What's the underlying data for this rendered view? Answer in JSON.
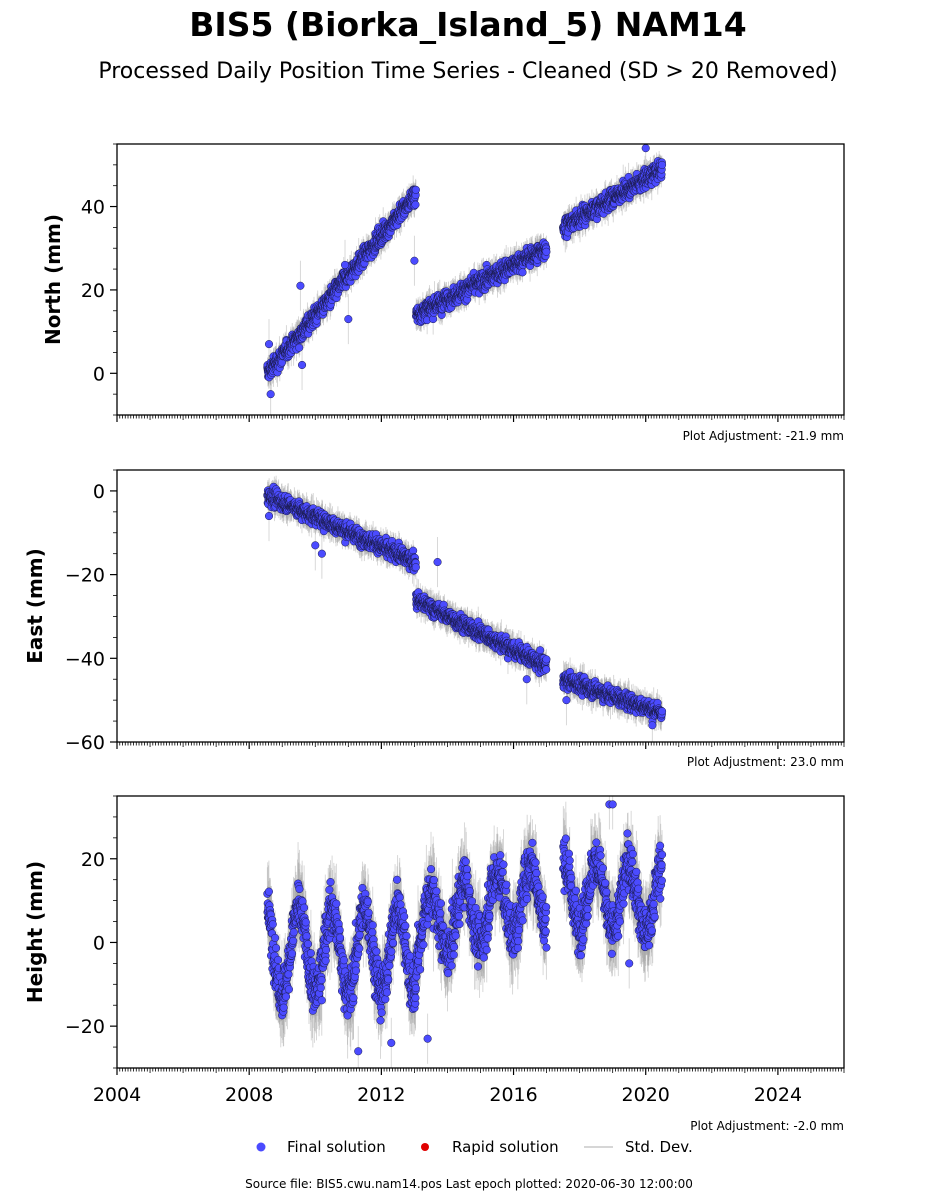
{
  "title": "BIS5 (Biorka_Island_5) NAM14",
  "subtitle": "Processed Daily Position Time Series - Cleaned (SD > 20 Removed)",
  "source": "Source file: BIS5.cwu.nam14.pos  Last epoch plotted: 2020-06-30 12:00:00",
  "legend": [
    {
      "label": "Final solution",
      "color": "#4B4BFF",
      "kind": "marker"
    },
    {
      "label": "Rapid solution",
      "color": "#E00000",
      "kind": "marker"
    },
    {
      "label": "Std. Dev.",
      "color": "#C8C8C8",
      "kind": "line"
    }
  ],
  "colors": {
    "final": "#4B4BFF",
    "edge": "#1a1a4a",
    "std": "#A0A0A0"
  },
  "x_ticks": [
    "2004",
    "2008",
    "2012",
    "2016",
    "2020",
    "2024"
  ],
  "chart_data": [
    {
      "type": "scatter",
      "ylabel": "North (mm)",
      "adjustment": "Plot Adjustment: -21.9 mm",
      "xlim": [
        2004.0,
        2026.0
      ],
      "ylim": [
        -10,
        55
      ],
      "y_ticks": [
        "0",
        "20",
        "40"
      ],
      "y_tick_values": [
        0,
        20,
        40
      ],
      "segments": [
        {
          "t0": 2008.55,
          "t1": 2013.05,
          "y0": 0,
          "y1": 43,
          "noise": 1.5,
          "sd": 3
        },
        {
          "t0": 2013.05,
          "t1": 2017.0,
          "y0": 14,
          "y1": 30,
          "noise": 1.5,
          "sd": 3
        },
        {
          "t0": 2017.5,
          "t1": 2020.5,
          "y0": 35,
          "y1": 49,
          "noise": 1.5,
          "sd": 3
        }
      ],
      "outliers": [
        [
          2008.6,
          7
        ],
        [
          2008.65,
          -5
        ],
        [
          2009.55,
          21
        ],
        [
          2009.6,
          2
        ],
        [
          2010.9,
          26
        ],
        [
          2011.0,
          13
        ],
        [
          2013.0,
          27
        ],
        [
          2020.0,
          54
        ]
      ]
    },
    {
      "type": "scatter",
      "ylabel": "East (mm)",
      "adjustment": "Plot Adjustment: 23.0 mm",
      "xlim": [
        2004.0,
        2026.0
      ],
      "ylim": [
        -60,
        5
      ],
      "y_ticks": [
        "0",
        "−20",
        "−40",
        "−60"
      ],
      "y_tick_values": [
        0,
        -20,
        -40,
        -60
      ],
      "segments": [
        {
          "t0": 2008.55,
          "t1": 2013.05,
          "y0": -1,
          "y1": -17,
          "noise": 1.3,
          "sd": 3
        },
        {
          "t0": 2013.05,
          "t1": 2017.0,
          "y0": -26,
          "y1": -42,
          "noise": 1.3,
          "sd": 3
        },
        {
          "t0": 2017.5,
          "t1": 2020.5,
          "y0": -45,
          "y1": -53,
          "noise": 1.3,
          "sd": 3
        }
      ],
      "outliers": [
        [
          2008.6,
          -6
        ],
        [
          2010.0,
          -13
        ],
        [
          2010.2,
          -15
        ],
        [
          2013.7,
          -17
        ],
        [
          2016.4,
          -45
        ],
        [
          2017.6,
          -50
        ],
        [
          2020.2,
          -56
        ]
      ]
    },
    {
      "type": "scatter",
      "ylabel": "Height (mm)",
      "adjustment": "Plot Adjustment: -2.0 mm",
      "xlim": [
        2004.0,
        2026.0
      ],
      "ylim": [
        -30,
        35
      ],
      "y_ticks": [
        "20",
        "0",
        "−20"
      ],
      "y_tick_values": [
        20,
        0,
        -20
      ],
      "segments": [
        {
          "t0": 2008.55,
          "t1": 2013.05,
          "y0": -2,
          "y1": -2,
          "noise": 4,
          "sd": 8,
          "seasonal": 10
        },
        {
          "t0": 2013.05,
          "t1": 2017.0,
          "y0": 3,
          "y1": 12,
          "noise": 4,
          "sd": 8,
          "seasonal": 8
        },
        {
          "t0": 2017.5,
          "t1": 2020.5,
          "y0": 12,
          "y1": 10,
          "noise": 4,
          "sd": 8,
          "seasonal": 8
        }
      ],
      "outliers": [
        [
          2011.3,
          -26
        ],
        [
          2012.3,
          -24
        ],
        [
          2013.4,
          -23
        ],
        [
          2018.9,
          33
        ],
        [
          2019.0,
          33
        ],
        [
          2019.5,
          -5
        ]
      ]
    }
  ]
}
